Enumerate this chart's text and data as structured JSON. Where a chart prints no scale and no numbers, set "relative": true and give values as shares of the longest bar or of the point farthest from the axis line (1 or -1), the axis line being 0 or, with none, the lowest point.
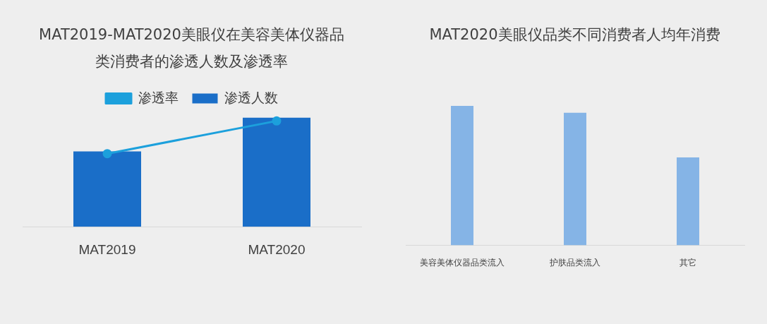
{
  "chart_data": [
    {
      "type": "bar",
      "title": "MAT2019-MAT2020美眼仪在美容美体仪器品类消费者的渗透人数及渗透率",
      "categories": [
        "MAT2019",
        "MAT2020"
      ],
      "relative": true,
      "legend": "top",
      "grid": false,
      "series": [
        {
          "name": "渗透人数",
          "color": "#1a6ec8",
          "values": [
            0.69,
            1
          ]
        },
        {
          "name": "渗透率",
          "type": "line",
          "color": "#1ca0dc",
          "marker": "circle",
          "values": [
            0.67,
            0.97
          ]
        }
      ]
    },
    {
      "type": "bar",
      "title": "MAT2020美眼仪品类不同消费者人均年消费",
      "categories": [
        "美容美体仪器品类流入",
        "护肤品类流入",
        "其它"
      ],
      "relative": true,
      "legend": false,
      "grid": false,
      "series": [
        {
          "color": "#85b4e6",
          "values": [
            1,
            0.95,
            0.63
          ]
        }
      ]
    }
  ]
}
